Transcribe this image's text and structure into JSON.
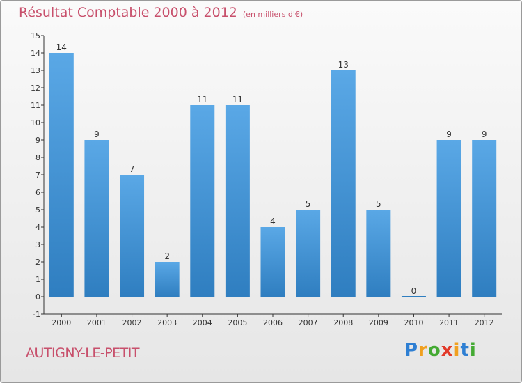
{
  "chart_data": {
    "type": "bar",
    "title": "Résultat Comptable 2000 à 2012",
    "unit_label": "(en milliers d'€)",
    "categories": [
      "2000",
      "2001",
      "2002",
      "2003",
      "2004",
      "2005",
      "2006",
      "2007",
      "2008",
      "2009",
      "2010",
      "2011",
      "2012"
    ],
    "values": [
      14,
      9,
      7,
      2,
      11,
      11,
      4,
      5,
      13,
      5,
      0,
      9,
      9
    ],
    "ylim": [
      -1,
      15
    ],
    "yticks": [
      -1,
      0,
      1,
      2,
      3,
      4,
      5,
      6,
      7,
      8,
      9,
      10,
      11,
      12,
      13,
      14,
      15
    ],
    "xlabel": "",
    "ylabel": "",
    "grid": false,
    "bar_color_light": "#5aa8e6",
    "bar_color_dark": "#2f7ec0"
  },
  "location": "AUTIGNY-LE-PETIT",
  "logo": {
    "letters": [
      "P",
      "r",
      "o",
      "x",
      "i",
      "t",
      "i"
    ],
    "colors": [
      "#2e7fd3",
      "#f0a020",
      "#44aa33",
      "#e23a2a",
      "#f0a020",
      "#2e7fd3",
      "#44aa33"
    ]
  },
  "colors": {
    "title": "#c8506c",
    "axis": "#333333"
  }
}
